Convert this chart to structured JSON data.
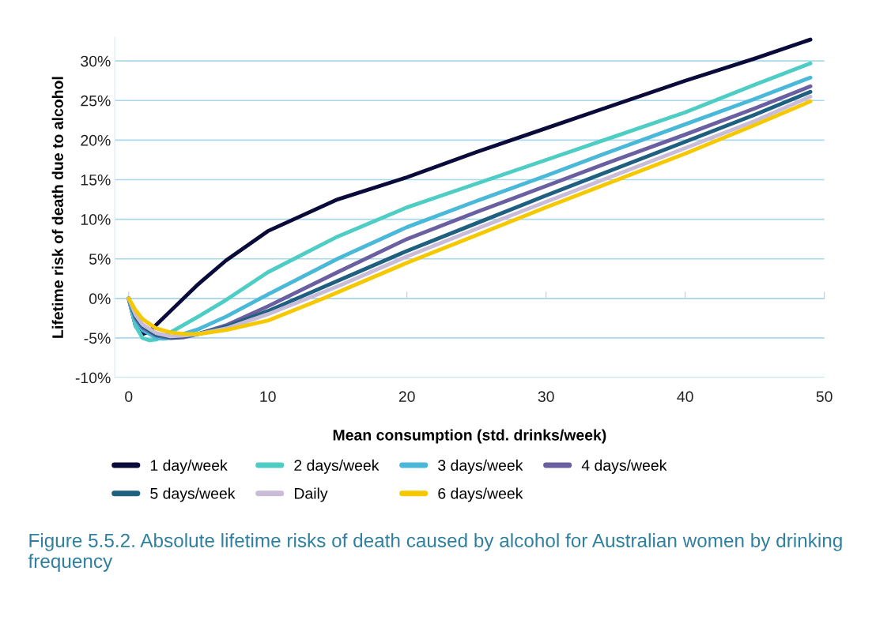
{
  "chart_data": {
    "type": "line",
    "xlabel": "Mean consumption (std. drinks/week)",
    "ylabel": "Lifetime risk of death due to alcohol",
    "xlim": [
      -1,
      50
    ],
    "xticks": [
      0,
      10,
      20,
      30,
      40,
      50
    ],
    "ylim": [
      -10,
      33
    ],
    "yticks": [
      {
        "value": -10,
        "label": "-10%"
      },
      {
        "value": -5,
        "label": "-5%"
      },
      {
        "value": 0,
        "label": "0%"
      },
      {
        "value": 5,
        "label": "5%"
      },
      {
        "value": 10,
        "label": "10%"
      },
      {
        "value": 15,
        "label": "15%"
      },
      {
        "value": 20,
        "label": "20%"
      },
      {
        "value": 25,
        "label": "25%"
      },
      {
        "value": 30,
        "label": "30%"
      }
    ],
    "grid": "y",
    "legend": "bottom",
    "marker": "none",
    "line_style": "solid",
    "annotations": [
      "Figure 5.5.2. Absolute lifetime risks of death caused by alcohol for Australian women by drinking frequency"
    ],
    "series": [
      {
        "name": "1 day/week",
        "color": "#0b0b3b",
        "x": [
          0,
          0.5,
          1,
          1.5,
          2,
          3,
          5,
          7,
          10,
          15,
          20,
          25,
          30,
          35,
          40,
          45,
          49
        ],
        "values": [
          0,
          -3.5,
          -4.5,
          -4.2,
          -3.3,
          -1.6,
          1.8,
          4.8,
          8.5,
          12.5,
          15.3,
          18.5,
          21.5,
          24.5,
          27.5,
          30.3,
          32.7
        ]
      },
      {
        "name": "2 days/week",
        "color": "#4ecdc4",
        "x": [
          0,
          0.5,
          1,
          1.5,
          2,
          3,
          5,
          7,
          10,
          15,
          20,
          25,
          30,
          35,
          40,
          45,
          49
        ],
        "values": [
          0,
          -3.5,
          -5,
          -5.3,
          -5.2,
          -4.3,
          -2.3,
          -0.2,
          3.3,
          7.8,
          11.5,
          14.5,
          17.5,
          20.5,
          23.5,
          27,
          29.7
        ]
      },
      {
        "name": "3 days/week",
        "color": "#4ab8d8",
        "x": [
          0,
          0.5,
          1,
          2,
          2.5,
          3,
          5,
          7,
          10,
          15,
          20,
          25,
          30,
          35,
          40,
          45,
          49
        ],
        "values": [
          0,
          -2.8,
          -4,
          -5,
          -5.1,
          -5,
          -3.9,
          -2.3,
          0.5,
          5,
          9,
          12.3,
          15.5,
          18.8,
          22,
          25.2,
          27.9
        ]
      },
      {
        "name": "4 days/week",
        "color": "#6a5fa0",
        "x": [
          0,
          0.5,
          1,
          2,
          3,
          4,
          5,
          7,
          10,
          15,
          20,
          25,
          30,
          35,
          40,
          45,
          49
        ],
        "values": [
          0,
          -2.5,
          -3.7,
          -4.7,
          -5,
          -4.9,
          -4.5,
          -3.4,
          -1,
          3.3,
          7.5,
          10.9,
          14.2,
          17.5,
          20.7,
          24,
          26.8
        ]
      },
      {
        "name": "5 days/week",
        "color": "#1f5f80",
        "x": [
          0,
          0.5,
          1,
          2,
          3,
          4,
          5,
          7,
          10,
          15,
          20,
          25,
          30,
          35,
          40,
          45,
          49
        ],
        "values": [
          0,
          -2.3,
          -3.5,
          -4.6,
          -4.9,
          -4.8,
          -4.5,
          -3.6,
          -1.6,
          2.2,
          6,
          9.5,
          13,
          16.4,
          19.8,
          23.2,
          26.1
        ]
      },
      {
        "name": "Daily",
        "color": "#c8bcd8",
        "x": [
          0,
          0.5,
          1,
          2,
          3,
          4,
          5,
          7,
          10,
          15,
          20,
          25,
          30,
          35,
          40,
          45,
          49
        ],
        "values": [
          0,
          -2.1,
          -3.3,
          -4.4,
          -4.8,
          -4.7,
          -4.5,
          -3.8,
          -2,
          1.5,
          5.3,
          8.8,
          12.2,
          15.6,
          19,
          22.4,
          25.5
        ]
      },
      {
        "name": "6 days/week",
        "color": "#f5c800",
        "x": [
          0,
          0.5,
          1,
          2,
          3,
          4,
          5,
          7,
          10,
          14,
          20,
          25,
          30,
          35,
          40,
          45,
          49
        ],
        "values": [
          0,
          -1.5,
          -2.6,
          -3.8,
          -4.3,
          -4.5,
          -4.5,
          -4,
          -2.8,
          0,
          4.5,
          8,
          11.5,
          14.9,
          18.3,
          21.9,
          24.9
        ]
      }
    ]
  }
}
